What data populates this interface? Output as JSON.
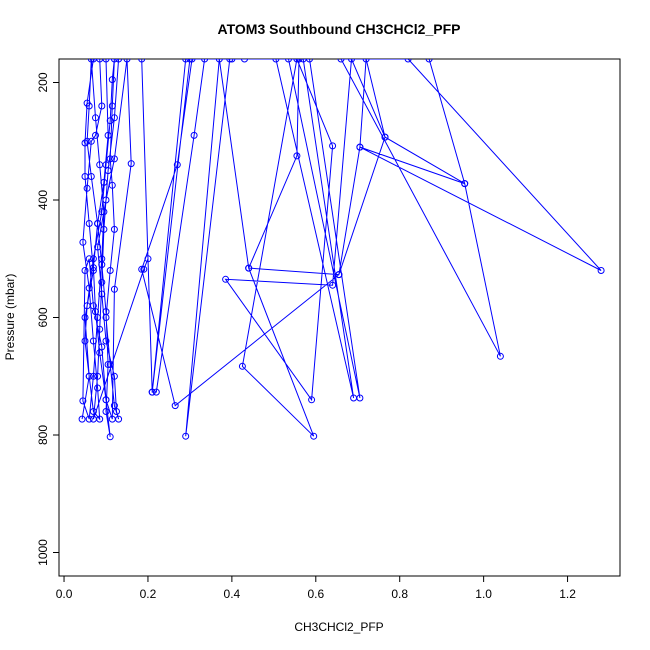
{
  "chart_data": {
    "type": "line",
    "title": "ATOM3 Southbound CH3CHCl2_PFP",
    "xlabel": "CH3CHCl2_PFP",
    "ylabel": "Pressure (mbar)",
    "xlim": [
      0,
      1.3
    ],
    "ylim": [
      1040,
      160
    ],
    "y_inverted": true,
    "x_ticks": [
      0.0,
      0.2,
      0.4,
      0.6,
      0.8,
      1.0,
      1.2
    ],
    "x_tick_labels": [
      "0.0",
      "0.2",
      "0.4",
      "0.6",
      "0.8",
      "1.0",
      "1.2"
    ],
    "y_ticks": [
      200,
      400,
      600,
      800,
      1000
    ],
    "y_tick_labels": [
      "200",
      "400",
      "600",
      "800",
      "1000"
    ],
    "grid": false,
    "series_color": "#0000ff",
    "series": [
      {
        "points": [
          [
            0.043,
            773
          ],
          [
            0.06,
            700
          ],
          [
            0.05,
            600
          ],
          [
            0.07,
            520
          ],
          [
            0.06,
            440
          ],
          [
            0.05,
            360
          ],
          [
            0.05,
            303
          ],
          [
            0.055,
            235
          ],
          [
            0.07,
            160
          ],
          [
            0.085,
            160
          ],
          [
            0.09,
            240
          ],
          [
            0.075,
            290
          ],
          [
            0.065,
            300
          ],
          [
            0.055,
            380
          ],
          [
            0.045,
            472
          ],
          [
            0.06,
            550
          ],
          [
            0.07,
            640
          ],
          [
            0.08,
            720
          ],
          [
            0.085,
            773
          ],
          [
            0.07,
            760
          ],
          [
            0.06,
            700
          ],
          [
            0.05,
            640
          ],
          [
            0.055,
            580
          ],
          [
            0.07,
            500
          ],
          [
            0.09,
            420
          ],
          [
            0.1,
            340
          ],
          [
            0.11,
            265
          ],
          [
            0.115,
            195
          ],
          [
            0.12,
            160
          ],
          [
            0.115,
            240
          ],
          [
            0.11,
            330
          ],
          [
            0.115,
            375
          ],
          [
            0.12,
            450
          ],
          [
            0.11,
            520
          ],
          [
            0.1,
            600
          ],
          [
            0.11,
            680
          ],
          [
            0.12,
            750
          ],
          [
            0.13,
            773
          ],
          [
            0.125,
            760
          ],
          [
            0.12,
            700
          ],
          [
            0.1,
            640
          ],
          [
            0.09,
            560
          ],
          [
            0.08,
            480
          ],
          [
            0.1,
            400
          ],
          [
            0.12,
            330
          ],
          [
            0.15,
            160
          ],
          [
            0.16,
            338
          ],
          [
            0.12,
            552
          ],
          [
            0.115,
            773
          ],
          [
            0.1,
            740
          ],
          [
            0.09,
            650
          ],
          [
            0.07,
            580
          ],
          [
            0.06,
            500
          ],
          [
            0.05,
            520
          ],
          [
            0.045,
            742
          ],
          [
            0.06,
            773
          ],
          [
            0.07,
            700
          ],
          [
            0.08,
            600
          ],
          [
            0.09,
            500
          ],
          [
            0.095,
            420
          ],
          [
            0.085,
            340
          ],
          [
            0.075,
            260
          ],
          [
            0.065,
            160
          ],
          [
            0.06,
            240
          ],
          [
            0.055,
            300
          ],
          [
            0.065,
            360
          ],
          [
            0.08,
            440
          ],
          [
            0.09,
            510
          ],
          [
            0.1,
            590
          ],
          [
            0.105,
            680
          ],
          [
            0.1,
            760
          ],
          [
            0.11,
            803
          ],
          [
            0.1,
            740
          ],
          [
            0.085,
            660
          ],
          [
            0.075,
            590
          ],
          [
            0.07,
            515
          ],
          [
            0.08,
            440
          ],
          [
            0.095,
            370
          ],
          [
            0.105,
            290
          ],
          [
            0.1,
            160
          ],
          [
            0.13,
            160
          ],
          [
            0.12,
            260
          ],
          [
            0.105,
            350
          ],
          [
            0.095,
            450
          ],
          [
            0.09,
            540
          ],
          [
            0.085,
            620
          ],
          [
            0.08,
            700
          ],
          [
            0.07,
            773
          ],
          [
            0.19,
            518
          ],
          [
            0.2,
            500
          ],
          [
            0.185,
            160
          ],
          [
            0.21,
            727
          ],
          [
            0.22,
            727
          ],
          [
            0.31,
            290
          ],
          [
            0.335,
            160
          ],
          [
            0.305,
            160
          ],
          [
            0.27,
            340
          ],
          [
            0.185,
            518
          ],
          [
            0.265,
            750
          ],
          [
            0.655,
            527
          ],
          [
            0.705,
            310
          ],
          [
            0.955,
            372
          ],
          [
            0.765,
            293
          ],
          [
            0.685,
            160
          ],
          [
            0.64,
            545
          ],
          [
            0.385,
            535
          ],
          [
            0.59,
            740
          ],
          [
            0.64,
            308
          ],
          [
            0.555,
            160
          ],
          [
            0.425,
            683
          ],
          [
            0.595,
            802
          ],
          [
            0.44,
            516
          ],
          [
            0.37,
            160
          ],
          [
            0.29,
            802
          ],
          [
            0.395,
            160
          ],
          [
            0.3,
            160
          ],
          [
            0.21,
            727
          ],
          [
            0.29,
            160
          ],
          [
            0.43,
            160
          ],
          [
            0.505,
            160
          ],
          [
            0.69,
            737
          ],
          [
            0.57,
            160
          ],
          [
            0.585,
            160
          ],
          [
            0.705,
            737
          ],
          [
            0.535,
            160
          ],
          [
            0.4,
            160
          ],
          [
            0.56,
            160
          ],
          [
            0.555,
            325
          ],
          [
            0.44,
            516
          ],
          [
            0.655,
            527
          ],
          [
            0.765,
            293
          ],
          [
            0.72,
            160
          ],
          [
            0.705,
            310
          ],
          [
            1.28,
            520
          ],
          [
            0.82,
            160
          ],
          [
            0.66,
            160
          ],
          [
            1.04,
            666
          ],
          [
            0.955,
            372
          ],
          [
            0.87,
            160
          ]
        ]
      }
    ]
  }
}
